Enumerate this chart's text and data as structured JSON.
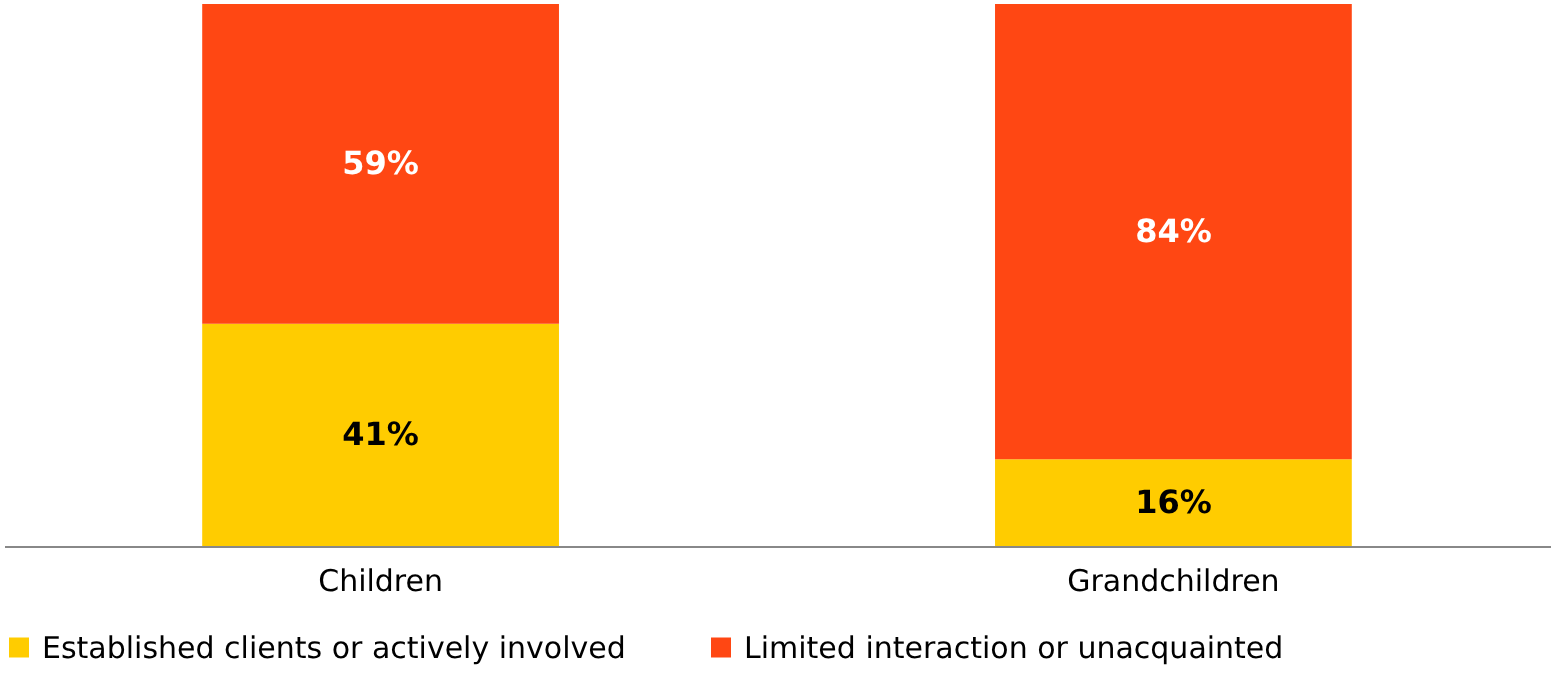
{
  "chart_data": {
    "type": "bar",
    "stacked": true,
    "categories": [
      "Children",
      "Grandchildren"
    ],
    "series": [
      {
        "name": "Established clients or actively involved",
        "color": "#ffcc00",
        "values": [
          41,
          16
        ],
        "value_labels": [
          "41%",
          "16%"
        ]
      },
      {
        "name": "Limited interaction or unacquainted",
        "color": "#ff4713",
        "values": [
          59,
          84
        ],
        "value_labels": [
          "59%",
          "84%"
        ]
      }
    ],
    "legend": "bottom left",
    "grid": false
  }
}
